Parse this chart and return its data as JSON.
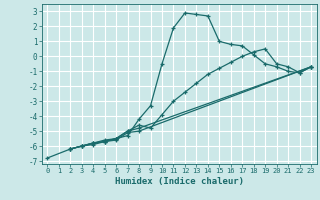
{
  "title": "",
  "xlabel": "Humidex (Indice chaleur)",
  "bg_color": "#cce8e8",
  "grid_color": "#ffffff",
  "line_color": "#1a6b6b",
  "xlim": [
    -0.5,
    23.5
  ],
  "ylim": [
    -7.2,
    3.5
  ],
  "xticks": [
    0,
    1,
    2,
    3,
    4,
    5,
    6,
    7,
    8,
    9,
    10,
    11,
    12,
    13,
    14,
    15,
    16,
    17,
    18,
    19,
    20,
    21,
    22,
    23
  ],
  "yticks": [
    -7,
    -6,
    -5,
    -4,
    -3,
    -2,
    -1,
    0,
    1,
    2,
    3
  ],
  "series": [
    {
      "x": [
        0,
        2,
        3,
        4,
        5,
        6,
        7,
        8,
        9,
        10,
        11,
        12,
        13,
        14,
        15,
        16,
        17,
        18,
        19,
        20,
        21,
        22,
        23
      ],
      "y": [
        -6.8,
        -6.2,
        -6.0,
        -5.8,
        -5.7,
        -5.5,
        -5.3,
        -4.2,
        -3.3,
        -0.5,
        1.9,
        2.9,
        2.8,
        2.7,
        1.0,
        0.8,
        0.7,
        0.1,
        -0.5,
        -0.7,
        -1.0,
        -1.1,
        -0.7
      ]
    },
    {
      "x": [
        2,
        3,
        4,
        5,
        6,
        7,
        8,
        9,
        10,
        11,
        12,
        13,
        14,
        15,
        16,
        17,
        18,
        19,
        20,
        21,
        22,
        23
      ],
      "y": [
        -6.2,
        -6.0,
        -5.8,
        -5.7,
        -5.5,
        -5.0,
        -4.6,
        -4.8,
        -3.9,
        -3.0,
        -2.4,
        -1.8,
        -1.2,
        -0.8,
        -0.4,
        0.0,
        0.3,
        0.5,
        -0.5,
        -0.7,
        -1.1,
        -0.7
      ]
    },
    {
      "x": [
        2,
        3,
        4,
        5,
        6,
        7,
        8,
        23
      ],
      "y": [
        -6.2,
        -6.0,
        -5.9,
        -5.7,
        -5.6,
        -5.1,
        -5.0,
        -0.7
      ]
    },
    {
      "x": [
        2,
        3,
        4,
        5,
        6,
        7,
        8,
        23
      ],
      "y": [
        -6.2,
        -6.0,
        -5.8,
        -5.6,
        -5.5,
        -5.0,
        -4.8,
        -0.7
      ]
    }
  ]
}
